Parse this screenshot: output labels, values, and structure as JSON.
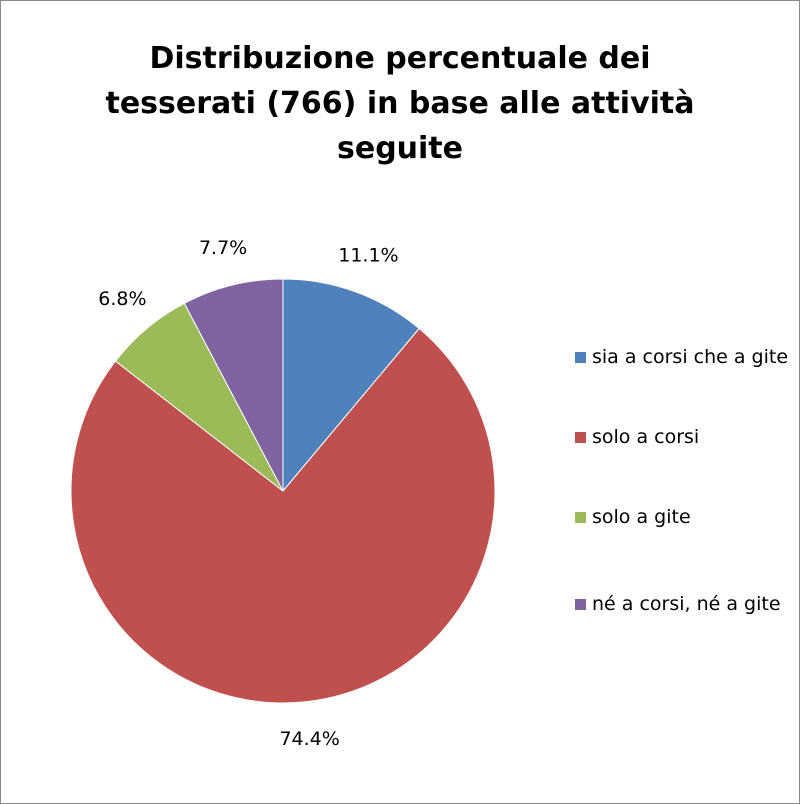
{
  "chart_data": {
    "type": "pie",
    "title": "Distribuzione percentuale dei tesserati (766) in base alle attività seguite",
    "categories": [
      "sia a corsi che a gite",
      "solo a corsi",
      "solo a gite",
      "né a corsi, né a gite"
    ],
    "values": [
      11.1,
      74.4,
      6.8,
      7.7
    ],
    "value_labels": [
      "11.1%",
      "74.4%",
      "6.8%",
      "7.7%"
    ],
    "colors": [
      "#4f81bd",
      "#c0504d",
      "#9bbb59",
      "#8064a2"
    ],
    "legend": "right"
  }
}
